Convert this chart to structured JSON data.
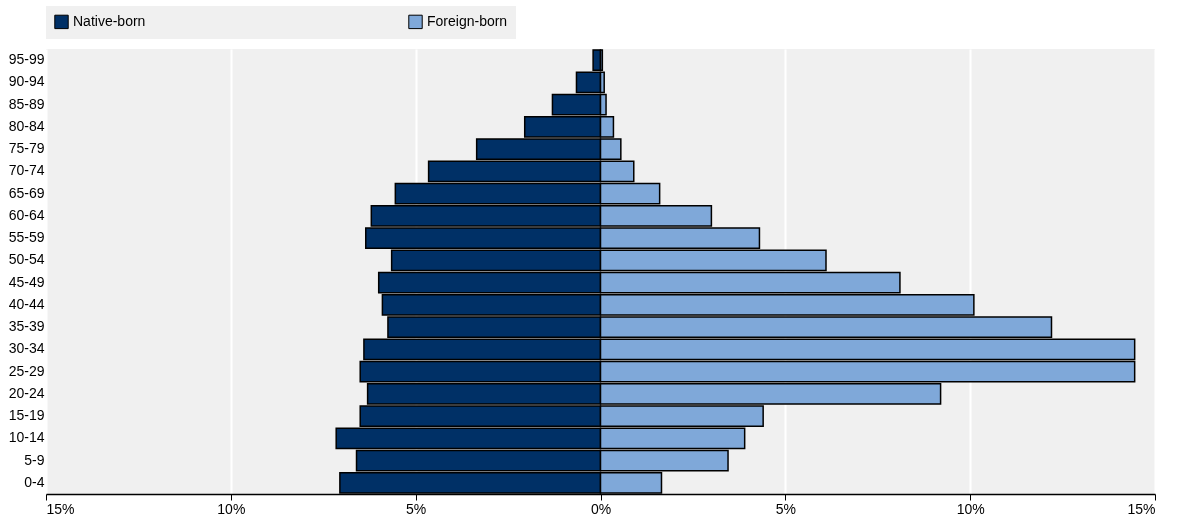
{
  "chart_data": {
    "type": "bar",
    "orientation": "horizontal",
    "categories": [
      "95-99",
      "90-94",
      "85-89",
      "80-84",
      "75-79",
      "70-74",
      "65-69",
      "60-64",
      "55-59",
      "50-54",
      "45-49",
      "40-44",
      "35-39",
      "30-34",
      "25-29",
      "20-24",
      "15-19",
      "10-14",
      "5-9",
      "0-4"
    ],
    "series": [
      {
        "name": "Native-born",
        "color": "#003066",
        "values": [
          -0.2,
          -0.65,
          -1.3,
          -2.05,
          -3.35,
          -4.65,
          -5.55,
          -6.2,
          -6.35,
          -5.65,
          -6.0,
          -5.9,
          -5.75,
          -6.4,
          -6.5,
          -6.3,
          -6.5,
          -7.15,
          -6.6,
          -7.05
        ]
      },
      {
        "name": "Foreign-born",
        "color": "#7fa8d9",
        "values": [
          0.05,
          0.1,
          0.15,
          0.35,
          0.55,
          0.9,
          1.6,
          3.0,
          4.3,
          6.1,
          8.1,
          10.1,
          12.2,
          14.45,
          14.45,
          9.2,
          4.4,
          3.9,
          3.45,
          1.65
        ]
      }
    ],
    "xlim": [
      -15,
      15
    ],
    "xticks": [
      {
        "value": -15,
        "label": "15%"
      },
      {
        "value": -10,
        "label": "10%"
      },
      {
        "value": -5,
        "label": "5%"
      },
      {
        "value": 0,
        "label": "0%"
      },
      {
        "value": 5,
        "label": "5%"
      },
      {
        "value": 10,
        "label": "10%"
      },
      {
        "value": 15,
        "label": "15%"
      }
    ],
    "grid": "x",
    "legend": "top",
    "stacked": true
  }
}
